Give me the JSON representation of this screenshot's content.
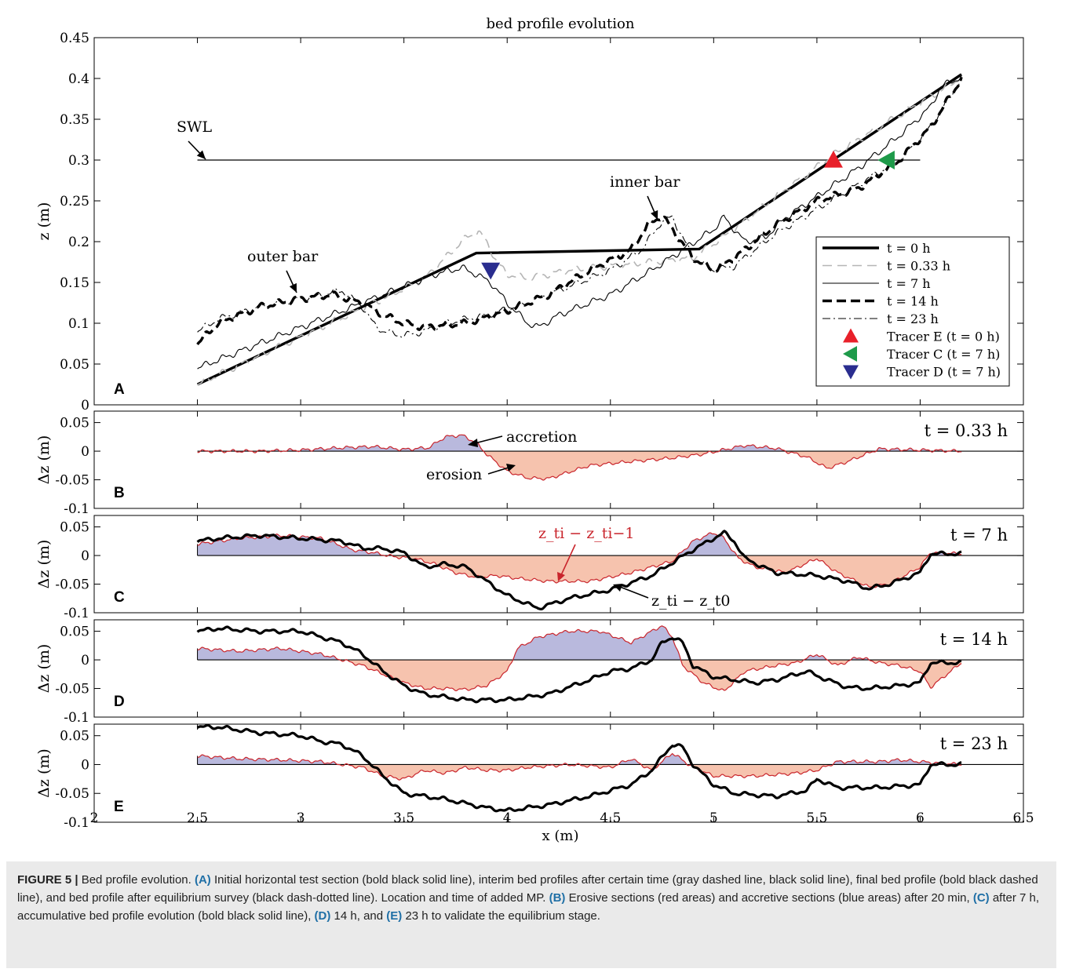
{
  "figure": {
    "title": "bed profile evolution",
    "xlabel": "x (m)",
    "x_ticks": [
      "2",
      "2.5",
      "3",
      "3.5",
      "4",
      "4.5",
      "5",
      "5.5",
      "6",
      "6.5"
    ]
  },
  "chart_data": [
    {
      "panel": "A",
      "type": "line",
      "title": "bed profile evolution",
      "ylabel": "z (m)",
      "xlim": [
        2,
        6.5
      ],
      "ylim": [
        0,
        0.45
      ],
      "y_ticks": [
        "0",
        "0.05",
        "0.1",
        "0.15",
        "0.2",
        "0.25",
        "0.3",
        "0.35",
        "0.4",
        "0.45"
      ],
      "annotations": [
        "SWL",
        "outer bar",
        "inner bar"
      ],
      "swl": {
        "x": [
          2.5,
          6.0
        ],
        "y": 0.3
      },
      "series": [
        {
          "name": "t = 0 h",
          "style": "bold-solid",
          "x": [
            2.5,
            3.85,
            4.93,
            6.2
          ],
          "y": [
            0.025,
            0.186,
            0.191,
            0.405
          ]
        },
        {
          "name": "t = 0.33 h",
          "style": "gray-dashed",
          "x": [
            2.5,
            2.8,
            3.1,
            3.4,
            3.6,
            3.72,
            3.8,
            3.86,
            3.9,
            3.95,
            4.0,
            4.1,
            4.3,
            4.5,
            4.7,
            4.9,
            5.1,
            5.3,
            5.6,
            5.9,
            6.1,
            6.2
          ],
          "y": [
            0.025,
            0.06,
            0.095,
            0.13,
            0.155,
            0.185,
            0.205,
            0.212,
            0.2,
            0.175,
            0.16,
            0.155,
            0.165,
            0.17,
            0.175,
            0.18,
            0.215,
            0.255,
            0.31,
            0.355,
            0.385,
            0.402
          ]
        },
        {
          "name": "t = 7 h",
          "style": "thin-solid",
          "x": [
            2.5,
            2.7,
            3.0,
            3.3,
            3.5,
            3.65,
            3.78,
            3.85,
            3.92,
            4.0,
            4.1,
            4.15,
            4.25,
            4.5,
            4.7,
            4.85,
            5.0,
            5.05,
            5.15,
            5.25,
            5.35,
            5.5,
            5.7,
            5.9,
            6.05,
            6.1,
            6.2
          ],
          "y": [
            0.045,
            0.065,
            0.095,
            0.125,
            0.145,
            0.16,
            0.168,
            0.16,
            0.15,
            0.125,
            0.1,
            0.095,
            0.11,
            0.135,
            0.165,
            0.19,
            0.215,
            0.23,
            0.2,
            0.205,
            0.23,
            0.255,
            0.29,
            0.33,
            0.365,
            0.39,
            0.402
          ]
        },
        {
          "name": "t = 14 h",
          "style": "bold-dashed",
          "x": [
            2.5,
            2.6,
            2.8,
            3.0,
            3.15,
            3.3,
            3.4,
            3.5,
            3.6,
            3.8,
            4.0,
            4.2,
            4.4,
            4.6,
            4.68,
            4.75,
            4.8,
            4.9,
            5.0,
            5.1,
            5.2,
            5.3,
            5.5,
            5.7,
            5.9,
            6.05,
            6.2
          ],
          "y": [
            0.075,
            0.1,
            0.12,
            0.13,
            0.135,
            0.125,
            0.11,
            0.1,
            0.095,
            0.1,
            0.115,
            0.135,
            0.165,
            0.19,
            0.22,
            0.232,
            0.215,
            0.18,
            0.165,
            0.18,
            0.2,
            0.22,
            0.25,
            0.265,
            0.3,
            0.34,
            0.4
          ]
        },
        {
          "name": "t = 23 h",
          "style": "dash-dot",
          "x": [
            2.5,
            2.6,
            2.8,
            3.0,
            3.2,
            3.3,
            3.35,
            3.4,
            3.5,
            3.6,
            3.7,
            3.9,
            4.1,
            4.3,
            4.5,
            4.65,
            4.75,
            4.8,
            4.85,
            4.9,
            5.0,
            5.1,
            5.2,
            5.3,
            5.5,
            5.7,
            5.9,
            6.05,
            6.2
          ],
          "y": [
            0.09,
            0.105,
            0.12,
            0.13,
            0.14,
            0.12,
            0.1,
            0.09,
            0.085,
            0.09,
            0.1,
            0.11,
            0.125,
            0.145,
            0.165,
            0.19,
            0.225,
            0.23,
            0.205,
            0.18,
            0.165,
            0.17,
            0.19,
            0.21,
            0.24,
            0.27,
            0.3,
            0.34,
            0.4
          ]
        }
      ],
      "tracers": [
        {
          "name": "Tracer E (t = 0 h)",
          "x": 5.58,
          "y": 0.3,
          "marker": "triangle-up",
          "color": "#e8202a"
        },
        {
          "name": "Tracer C (t = 7 h)",
          "x": 5.84,
          "y": 0.3,
          "marker": "triangle-left",
          "color": "#1e9a4a"
        },
        {
          "name": "Tracer D (t = 7 h)",
          "x": 3.92,
          "y": 0.165,
          "marker": "triangle-down",
          "color": "#2a2d8f"
        }
      ],
      "legend_position": "lower-right",
      "panel_label": "A"
    },
    {
      "panel": "B",
      "type": "area",
      "ylabel": "Δz (m)",
      "time_label": "t = 0.33 h",
      "xlim": [
        2,
        6.5
      ],
      "ylim": [
        -0.1,
        0.07
      ],
      "y_ticks": [
        "0.05",
        "0",
        "-0.05",
        "-0.1"
      ],
      "annotations": [
        "accretion",
        "erosion"
      ],
      "series": [
        {
          "name": "z_ti − z_ti−1",
          "x": [
            2.5,
            2.8,
            3.0,
            3.2,
            3.35,
            3.5,
            3.62,
            3.7,
            3.78,
            3.85,
            3.9,
            4.0,
            4.1,
            4.2,
            4.4,
            4.6,
            4.8,
            4.95,
            5.15,
            5.3,
            5.45,
            5.55,
            5.65,
            5.8,
            6.0,
            6.2
          ],
          "y": [
            0.0,
            0.0,
            0.002,
            0.006,
            0.008,
            0.003,
            0.006,
            0.025,
            0.028,
            0.015,
            -0.005,
            -0.035,
            -0.047,
            -0.048,
            -0.025,
            -0.018,
            -0.012,
            -0.005,
            0.01,
            0.005,
            -0.01,
            -0.03,
            -0.018,
            0.004,
            0.002,
            0.0
          ]
        }
      ],
      "panel_label": "B"
    },
    {
      "panel": "C",
      "type": "area",
      "ylabel": "Δz (m)",
      "time_label": "t = 7 h",
      "xlim": [
        2,
        6.5
      ],
      "ylim": [
        -0.1,
        0.07
      ],
      "y_ticks": [
        "0.05",
        "0",
        "-0.05",
        "-0.1"
      ],
      "annotations": [
        "z_ti − z_ti−1",
        "z_ti − z_t0"
      ],
      "series": [
        {
          "name": "z_ti − z_ti−1",
          "x": [
            2.5,
            2.7,
            2.9,
            3.1,
            3.25,
            3.35,
            3.45,
            3.55,
            3.65,
            3.75,
            3.85,
            3.95,
            4.05,
            4.2,
            4.4,
            4.6,
            4.8,
            4.9,
            5.0,
            5.05,
            5.12,
            5.2,
            5.35,
            5.5,
            5.6,
            5.75,
            5.85,
            6.0,
            6.05,
            6.2
          ],
          "y": [
            0.02,
            0.03,
            0.035,
            0.03,
            0.01,
            0.005,
            -0.002,
            -0.005,
            -0.015,
            -0.03,
            -0.038,
            -0.035,
            -0.04,
            -0.045,
            -0.045,
            -0.03,
            -0.01,
            0.025,
            0.04,
            0.03,
            -0.005,
            -0.02,
            -0.03,
            -0.005,
            -0.03,
            -0.055,
            -0.05,
            -0.02,
            0.005,
            0.003
          ]
        },
        {
          "name": "z_ti − z_t0",
          "x": [
            2.5,
            2.6,
            2.8,
            3.0,
            3.2,
            3.3,
            3.4,
            3.5,
            3.6,
            3.7,
            3.8,
            3.9,
            4.0,
            4.1,
            4.15,
            4.3,
            4.5,
            4.7,
            4.9,
            5.0,
            5.05,
            5.1,
            5.15,
            5.3,
            5.5,
            5.65,
            5.75,
            5.85,
            6.0,
            6.05,
            6.2
          ],
          "y": [
            0.025,
            0.03,
            0.035,
            0.03,
            0.025,
            0.013,
            0.012,
            0.005,
            -0.02,
            -0.015,
            -0.02,
            -0.045,
            -0.07,
            -0.085,
            -0.092,
            -0.075,
            -0.06,
            -0.035,
            0.01,
            0.03,
            0.04,
            0.025,
            -0.005,
            -0.03,
            -0.035,
            -0.045,
            -0.058,
            -0.05,
            -0.03,
            0.003,
            0.003
          ]
        }
      ],
      "panel_label": "C"
    },
    {
      "panel": "D",
      "type": "area",
      "ylabel": "Δz (m)",
      "time_label": "t = 14 h",
      "xlim": [
        2,
        6.5
      ],
      "ylim": [
        -0.1,
        0.07
      ],
      "y_ticks": [
        "0.05",
        "0",
        "-0.05",
        "-0.1"
      ],
      "series": [
        {
          "name": "z_ti − z_ti−1",
          "x": [
            2.5,
            2.7,
            2.9,
            3.1,
            3.3,
            3.4,
            3.5,
            3.6,
            3.7,
            3.8,
            3.9,
            4.0,
            4.05,
            4.15,
            4.3,
            4.45,
            4.6,
            4.75,
            4.8,
            4.85,
            4.95,
            5.05,
            5.15,
            5.3,
            5.4,
            5.5,
            5.6,
            5.7,
            5.8,
            5.9,
            6.0,
            6.05,
            6.2
          ],
          "y": [
            0.02,
            0.015,
            0.02,
            0.01,
            -0.01,
            -0.025,
            -0.04,
            -0.05,
            -0.05,
            -0.052,
            -0.045,
            -0.02,
            0.02,
            0.04,
            0.05,
            0.05,
            0.03,
            0.06,
            0.04,
            -0.01,
            -0.04,
            -0.055,
            -0.02,
            -0.01,
            -0.005,
            0.01,
            -0.01,
            0.005,
            -0.005,
            -0.01,
            -0.02,
            -0.048,
            -0.005
          ]
        },
        {
          "name": "z_ti − z_t0",
          "x": [
            2.5,
            2.6,
            2.8,
            3.0,
            3.1,
            3.2,
            3.3,
            3.4,
            3.5,
            3.6,
            3.8,
            4.0,
            4.2,
            4.4,
            4.5,
            4.6,
            4.7,
            4.75,
            4.8,
            4.85,
            4.9,
            5.0,
            5.1,
            5.2,
            5.3,
            5.45,
            5.55,
            5.65,
            5.75,
            5.9,
            6.0,
            6.05,
            6.2
          ],
          "y": [
            0.05,
            0.055,
            0.05,
            0.05,
            0.04,
            0.03,
            0.01,
            -0.02,
            -0.045,
            -0.06,
            -0.07,
            -0.07,
            -0.06,
            -0.035,
            -0.02,
            -0.015,
            0.0,
            0.03,
            0.04,
            0.03,
            -0.01,
            -0.03,
            -0.035,
            -0.04,
            -0.035,
            -0.02,
            -0.035,
            -0.048,
            -0.05,
            -0.045,
            -0.04,
            -0.005,
            -0.005
          ]
        }
      ],
      "panel_label": "D"
    },
    {
      "panel": "E",
      "type": "area",
      "ylabel": "Δz (m)",
      "time_label": "t = 23 h",
      "xlim": [
        2,
        6.5
      ],
      "ylim": [
        -0.1,
        0.07
      ],
      "y_ticks": [
        "0.05",
        "0",
        "-0.05",
        "-0.1"
      ],
      "series": [
        {
          "name": "z_ti − z_ti−1",
          "x": [
            2.5,
            2.7,
            2.9,
            3.1,
            3.3,
            3.4,
            3.5,
            3.6,
            3.7,
            3.8,
            3.9,
            4.0,
            4.1,
            4.3,
            4.5,
            4.6,
            4.7,
            4.8,
            4.9,
            5.0,
            5.2,
            5.4,
            5.5,
            5.6,
            5.8,
            5.9,
            6.0,
            6.1,
            6.2
          ],
          "y": [
            0.015,
            0.01,
            0.008,
            0.005,
            -0.005,
            -0.02,
            -0.025,
            -0.01,
            -0.015,
            -0.005,
            -0.01,
            -0.01,
            -0.005,
            0.0,
            -0.005,
            0.01,
            -0.01,
            0.02,
            -0.005,
            -0.02,
            -0.02,
            -0.015,
            -0.01,
            0.005,
            0.005,
            0.008,
            0.005,
            0.002,
            0.0
          ]
        },
        {
          "name": "z_ti − z_t0",
          "x": [
            2.5,
            2.6,
            2.8,
            3.0,
            3.1,
            3.2,
            3.3,
            3.4,
            3.5,
            3.7,
            3.9,
            4.0,
            4.2,
            4.4,
            4.6,
            4.7,
            4.8,
            4.85,
            4.9,
            5.0,
            5.1,
            5.3,
            5.45,
            5.5,
            5.6,
            5.8,
            6.0,
            6.05,
            6.2
          ],
          "y": [
            0.065,
            0.065,
            0.055,
            0.05,
            0.04,
            0.035,
            0.015,
            -0.02,
            -0.05,
            -0.06,
            -0.075,
            -0.08,
            -0.07,
            -0.055,
            -0.035,
            -0.01,
            0.035,
            0.03,
            0.0,
            -0.035,
            -0.05,
            -0.055,
            -0.045,
            -0.025,
            -0.04,
            -0.04,
            -0.035,
            0.0,
            0.0
          ]
        }
      ],
      "panel_label": "E"
    }
  ],
  "colors": {
    "accretion_fill": "#b9b9dd",
    "erosion_fill": "#f6c3ae",
    "diff_line": "#c9252c"
  },
  "caption": {
    "label": "FIGURE 5 |",
    "intro": " Bed profile evolution. ",
    "a_tag": "(A)",
    "a_text": " Initial horizontal test section (bold black solid line), interim bed profiles after certain time (gray dashed line, black solid line), final bed profile (bold black dashed line), and bed profile after equilibrium survey (black dash-dotted line). Location and time of added MP. ",
    "b_tag": "(B)",
    "b_text": " Erosive sections (red areas) and accretive sections (blue areas) after 20 min, ",
    "c_tag": "(C)",
    "c_text": " after 7 h, accumulative bed profile evolution (bold black solid line), ",
    "d_tag": "(D)",
    "d_text": " 14 h, and ",
    "e_tag": "(E)",
    "e_text": " 23 h to validate the equilibrium stage."
  }
}
